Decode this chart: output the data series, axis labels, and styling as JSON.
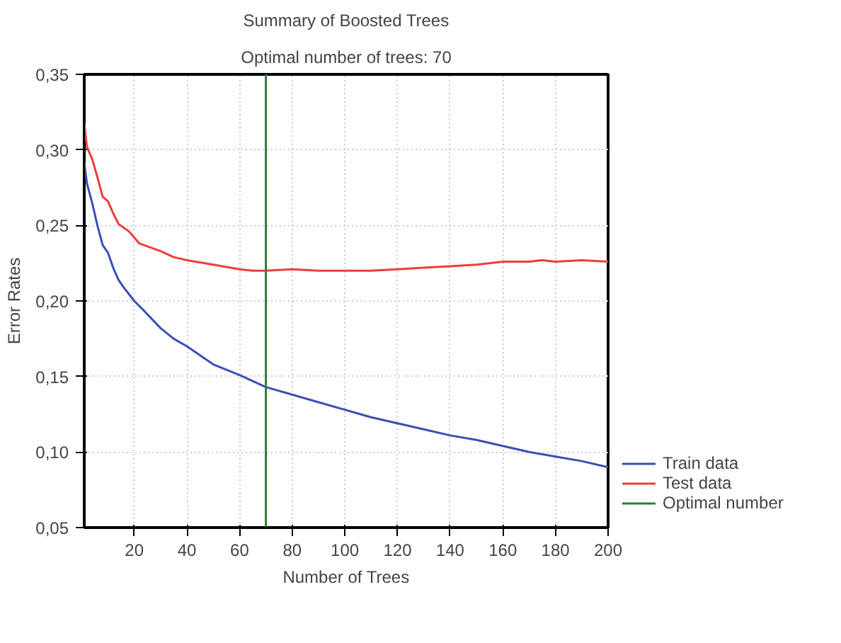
{
  "chart_data": {
    "type": "line",
    "title": "Summary of Boosted Trees",
    "subtitle": "Optimal number of trees: 70",
    "xlabel": "Number of Trees",
    "ylabel": "Error Rates",
    "xlim": [
      1,
      200
    ],
    "xticks": [
      20,
      40,
      60,
      80,
      100,
      120,
      140,
      160,
      180,
      200
    ],
    "ylim": [
      0.05,
      0.35
    ],
    "yticks": [
      {
        "value": 0.05,
        "label": "0,05"
      },
      {
        "value": 0.1,
        "label": "0,10"
      },
      {
        "value": 0.15,
        "label": "0,15"
      },
      {
        "value": 0.2,
        "label": "0,20"
      },
      {
        "value": 0.25,
        "label": "0,25"
      },
      {
        "value": 0.3,
        "label": "0,30"
      },
      {
        "value": 0.35,
        "label": "0,35"
      }
    ],
    "grid": true,
    "legend": "bottom right",
    "line_style": "solid",
    "series": [
      {
        "name": "Train data",
        "color": "#3c4fb4",
        "x": [
          1,
          2,
          4,
          6,
          8,
          10,
          12,
          14,
          16,
          20,
          24,
          30,
          35,
          40,
          45,
          50,
          60,
          70,
          80,
          90,
          100,
          110,
          120,
          130,
          140,
          150,
          160,
          170,
          180,
          190,
          200
        ],
        "values": [
          0.292,
          0.278,
          0.265,
          0.25,
          0.237,
          0.232,
          0.222,
          0.214,
          0.209,
          0.2,
          0.193,
          0.182,
          0.175,
          0.17,
          0.164,
          0.158,
          0.151,
          0.143,
          0.138,
          0.133,
          0.128,
          0.123,
          0.119,
          0.115,
          0.111,
          0.108,
          0.104,
          0.1,
          0.097,
          0.094,
          0.09
        ]
      },
      {
        "name": "Test data",
        "color": "#f03c3c",
        "x": [
          1,
          2,
          4,
          6,
          8,
          10,
          12,
          14,
          18,
          22,
          30,
          35,
          40,
          50,
          60,
          65,
          70,
          80,
          90,
          100,
          110,
          120,
          130,
          140,
          150,
          160,
          170,
          175,
          180,
          190,
          200
        ],
        "values": [
          0.318,
          0.302,
          0.294,
          0.282,
          0.269,
          0.266,
          0.258,
          0.251,
          0.246,
          0.238,
          0.233,
          0.229,
          0.227,
          0.224,
          0.221,
          0.22,
          0.22,
          0.221,
          0.22,
          0.22,
          0.22,
          0.221,
          0.222,
          0.223,
          0.224,
          0.226,
          0.226,
          0.227,
          0.226,
          0.227,
          0.226
        ]
      },
      {
        "name": "Optimal number",
        "color": "#2e7d3a",
        "x": [
          70,
          70
        ],
        "values": [
          0.05,
          0.35
        ]
      }
    ]
  }
}
